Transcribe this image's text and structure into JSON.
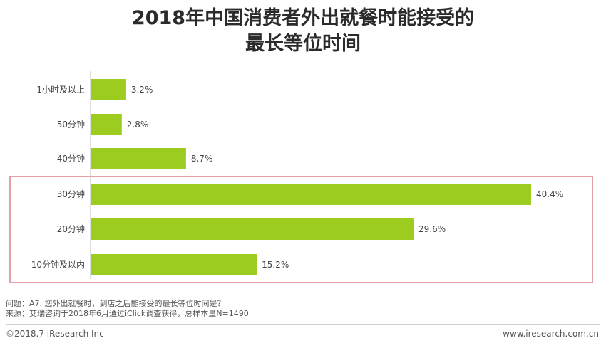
{
  "title_line1": "2018年中国消费者外出就餐时能接受的",
  "title_line2": "最长等位时间",
  "chart_data": {
    "type": "bar",
    "orientation": "horizontal",
    "categories": [
      "1小时及以上",
      "50分钟",
      "40分钟",
      "30分钟",
      "20分钟",
      "10分钟及以内"
    ],
    "values": [
      3.2,
      2.8,
      8.7,
      40.4,
      29.6,
      15.2
    ],
    "value_labels": [
      "3.2%",
      "2.8%",
      "8.7%",
      "40.4%",
      "29.6%",
      "15.2%"
    ],
    "unit": "%",
    "bar_color": "#9ccc1f",
    "highlight_box_color": "#e3a0a6",
    "highlighted_categories": [
      "30分钟",
      "20分钟",
      "10分钟及以内"
    ],
    "xlim": [
      0,
      40.4
    ]
  },
  "notes": {
    "question": "问题：A7. 您外出就餐时，到店之后能接受的最长等位时间是？",
    "source": "来源：艾瑞咨询于2018年6月通过iClick调查获得，总样本量N=1490"
  },
  "footer": {
    "copyright": "©2018.7 iResearch Inc",
    "website": "www.iresearch.com.cn"
  }
}
